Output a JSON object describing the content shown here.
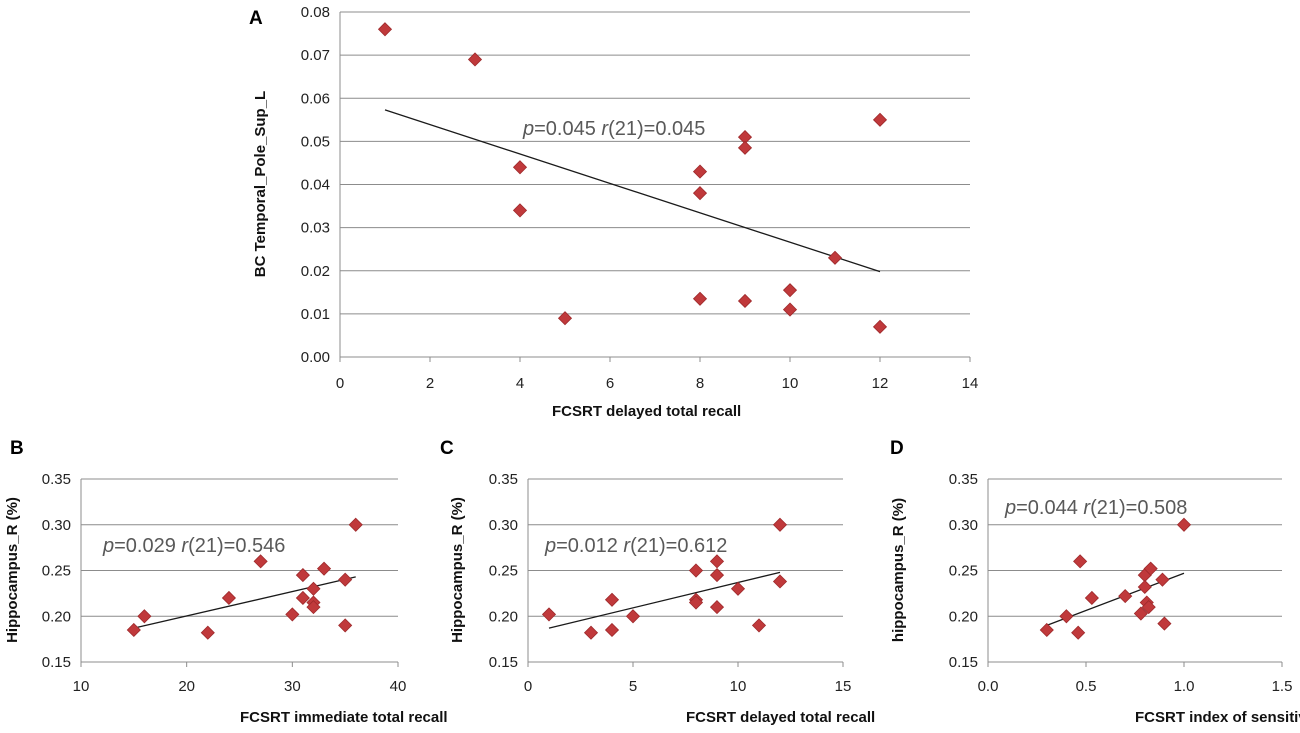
{
  "chart_data": [
    {
      "panel": "A",
      "type": "scatter",
      "xlabel": "FCSRT delayed total recall",
      "ylabel": "BC Temporal_Pole_Sup_L",
      "xlim": [
        0,
        14
      ],
      "ylim": [
        0,
        0.08
      ],
      "xticks": [
        "0",
        "2",
        "4",
        "6",
        "8",
        "10",
        "12",
        "14"
      ],
      "yticks": [
        "0.00",
        "0.01",
        "0.02",
        "0.03",
        "0.04",
        "0.05",
        "0.06",
        "0.07",
        "0.08"
      ],
      "grid": true,
      "points": [
        {
          "x": 1,
          "y": 0.076
        },
        {
          "x": 3,
          "y": 0.069
        },
        {
          "x": 4,
          "y": 0.044
        },
        {
          "x": 4,
          "y": 0.034
        },
        {
          "x": 5,
          "y": 0.009
        },
        {
          "x": 8,
          "y": 0.043
        },
        {
          "x": 8,
          "y": 0.038
        },
        {
          "x": 8,
          "y": 0.0135
        },
        {
          "x": 9,
          "y": 0.051
        },
        {
          "x": 9,
          "y": 0.0485
        },
        {
          "x": 9,
          "y": 0.013
        },
        {
          "x": 10,
          "y": 0.0155
        },
        {
          "x": 10,
          "y": 0.011
        },
        {
          "x": 11,
          "y": 0.023
        },
        {
          "x": 12,
          "y": 0.055
        },
        {
          "x": 12,
          "y": 0.007
        }
      ],
      "trendline": [
        [
          1,
          0.0573
        ],
        [
          12,
          0.0198
        ]
      ],
      "annotation": {
        "p_label": "p",
        "p_value": "=0.045 ",
        "r_label": "r",
        "r_value": "(21)=0.045"
      }
    },
    {
      "panel": "B",
      "type": "scatter",
      "xlabel": "FCSRT immediate total recall",
      "ylabel": "Hippocampus_R (%)",
      "xlim": [
        10,
        40
      ],
      "ylim": [
        0.15,
        0.35
      ],
      "xticks": [
        "10",
        "20",
        "30",
        "40"
      ],
      "yticks": [
        "0.15",
        "0.20",
        "0.25",
        "0.30",
        "0.35"
      ],
      "grid": true,
      "points": [
        {
          "x": 15,
          "y": 0.185
        },
        {
          "x": 16,
          "y": 0.2
        },
        {
          "x": 22,
          "y": 0.182
        },
        {
          "x": 24,
          "y": 0.22
        },
        {
          "x": 27,
          "y": 0.26
        },
        {
          "x": 30,
          "y": 0.202
        },
        {
          "x": 31,
          "y": 0.245
        },
        {
          "x": 31,
          "y": 0.22
        },
        {
          "x": 32,
          "y": 0.23
        },
        {
          "x": 32,
          "y": 0.215
        },
        {
          "x": 32,
          "y": 0.21
        },
        {
          "x": 33,
          "y": 0.252
        },
        {
          "x": 35,
          "y": 0.24
        },
        {
          "x": 35,
          "y": 0.19
        },
        {
          "x": 36,
          "y": 0.3
        }
      ],
      "trendline": [
        [
          15,
          0.187
        ],
        [
          36,
          0.243
        ]
      ],
      "annotation": {
        "p_label": "p",
        "p_value": "=0.029 ",
        "r_label": "r",
        "r_value": "(21)=0.546"
      }
    },
    {
      "panel": "C",
      "type": "scatter",
      "xlabel": "FCSRT delayed total recall",
      "ylabel": "Hippocampus_R (%)",
      "xlim": [
        0,
        15
      ],
      "ylim": [
        0.15,
        0.35
      ],
      "xticks": [
        "0",
        "5",
        "10",
        "15"
      ],
      "yticks": [
        "0.15",
        "0.20",
        "0.25",
        "0.30",
        "0.35"
      ],
      "grid": true,
      "points": [
        {
          "x": 1,
          "y": 0.202
        },
        {
          "x": 3,
          "y": 0.182
        },
        {
          "x": 4,
          "y": 0.218
        },
        {
          "x": 4,
          "y": 0.185
        },
        {
          "x": 5,
          "y": 0.2
        },
        {
          "x": 8,
          "y": 0.25
        },
        {
          "x": 8,
          "y": 0.218
        },
        {
          "x": 8,
          "y": 0.215
        },
        {
          "x": 9,
          "y": 0.26
        },
        {
          "x": 9,
          "y": 0.245
        },
        {
          "x": 9,
          "y": 0.21
        },
        {
          "x": 10,
          "y": 0.23
        },
        {
          "x": 11,
          "y": 0.19
        },
        {
          "x": 12,
          "y": 0.3
        },
        {
          "x": 12,
          "y": 0.238
        }
      ],
      "trendline": [
        [
          1,
          0.187
        ],
        [
          12,
          0.248
        ]
      ],
      "annotation": {
        "p_label": "p",
        "p_value": "=0.012 ",
        "r_label": "r",
        "r_value": "(21)=0.612"
      }
    },
    {
      "panel": "D",
      "type": "scatter",
      "xlabel": "FCSRT index of sensitivity",
      "ylabel": "hippocampus_R (%)",
      "xlim": [
        0,
        1.5
      ],
      "ylim": [
        0.15,
        0.35
      ],
      "xticks": [
        "0.0",
        "0.5",
        "1.0",
        "1.5"
      ],
      "yticks": [
        "0.15",
        "0.20",
        "0.25",
        "0.30",
        "0.35"
      ],
      "grid": true,
      "points": [
        {
          "x": 0.3,
          "y": 0.185
        },
        {
          "x": 0.4,
          "y": 0.2
        },
        {
          "x": 0.46,
          "y": 0.182
        },
        {
          "x": 0.47,
          "y": 0.26
        },
        {
          "x": 0.53,
          "y": 0.22
        },
        {
          "x": 0.7,
          "y": 0.222
        },
        {
          "x": 0.78,
          "y": 0.203
        },
        {
          "x": 0.8,
          "y": 0.245
        },
        {
          "x": 0.8,
          "y": 0.232
        },
        {
          "x": 0.81,
          "y": 0.215
        },
        {
          "x": 0.82,
          "y": 0.21
        },
        {
          "x": 0.83,
          "y": 0.252
        },
        {
          "x": 0.89,
          "y": 0.24
        },
        {
          "x": 0.9,
          "y": 0.192
        },
        {
          "x": 1.0,
          "y": 0.3
        }
      ],
      "trendline": [
        [
          0.3,
          0.19
        ],
        [
          1.0,
          0.247
        ]
      ],
      "annotation": {
        "p_label": "p",
        "p_value": "=0.044 ",
        "r_label": "r",
        "r_value": "(21)=0.508"
      }
    }
  ],
  "colors": {
    "marker": "#c0393b",
    "marker_edge": "#9e2a2c",
    "grid": "#8c8c8c",
    "axis": "#8c8c8c",
    "trendline": "#1a1a1a"
  }
}
